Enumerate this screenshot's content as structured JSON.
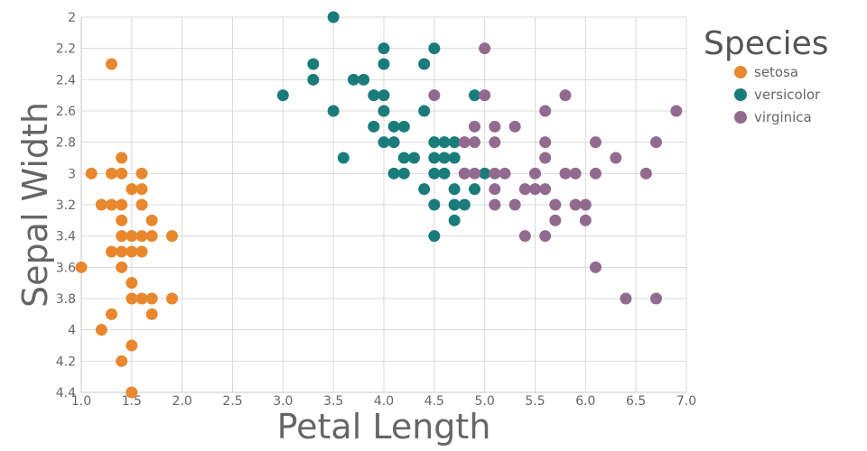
{
  "chart_data": {
    "type": "scatter",
    "xlabel": "Petal Length",
    "ylabel": "Sepal Width",
    "xlim": [
      1.0,
      7.0
    ],
    "ylim": [
      2.0,
      4.4
    ],
    "y_inverted": true,
    "x_ticks": [
      "1.0",
      "1.5",
      "2.0",
      "2.5",
      "3.0",
      "3.5",
      "4.0",
      "4.5",
      "5.0",
      "5.5",
      "6.0",
      "6.5",
      "7.0"
    ],
    "y_ticks": [
      "2",
      "2.2",
      "2.4",
      "2.6",
      "2.8",
      "3",
      "3.2",
      "3.4",
      "3.6",
      "3.8",
      "4",
      "4.2",
      "4.4"
    ],
    "grid": true,
    "legend": {
      "title": "Species",
      "position": "top-right"
    },
    "series": [
      {
        "name": "setosa",
        "color": "#e8872d",
        "points": [
          [
            1.3,
            2.3
          ],
          [
            1.1,
            3.0
          ],
          [
            1.3,
            3.0
          ],
          [
            1.4,
            3.0
          ],
          [
            1.6,
            3.0
          ],
          [
            1.4,
            2.9
          ],
          [
            1.5,
            3.1
          ],
          [
            1.6,
            3.1
          ],
          [
            1.2,
            3.2
          ],
          [
            1.3,
            3.2
          ],
          [
            1.4,
            3.2
          ],
          [
            1.6,
            3.2
          ],
          [
            1.4,
            3.3
          ],
          [
            1.7,
            3.3
          ],
          [
            1.4,
            3.4
          ],
          [
            1.5,
            3.4
          ],
          [
            1.6,
            3.4
          ],
          [
            1.7,
            3.4
          ],
          [
            1.9,
            3.4
          ],
          [
            1.3,
            3.5
          ],
          [
            1.4,
            3.5
          ],
          [
            1.5,
            3.5
          ],
          [
            1.6,
            3.5
          ],
          [
            1.0,
            3.6
          ],
          [
            1.4,
            3.6
          ],
          [
            1.5,
            3.7
          ],
          [
            1.5,
            3.8
          ],
          [
            1.6,
            3.8
          ],
          [
            1.7,
            3.8
          ],
          [
            1.9,
            3.8
          ],
          [
            1.3,
            3.9
          ],
          [
            1.7,
            3.9
          ],
          [
            1.2,
            4.0
          ],
          [
            1.5,
            4.1
          ],
          [
            1.4,
            4.2
          ],
          [
            1.5,
            4.4
          ]
        ]
      },
      {
        "name": "versicolor",
        "color": "#1a7b7b",
        "points": [
          [
            3.5,
            2.0
          ],
          [
            4.0,
            2.2
          ],
          [
            4.5,
            2.2
          ],
          [
            3.3,
            2.3
          ],
          [
            4.0,
            2.3
          ],
          [
            4.4,
            2.3
          ],
          [
            3.3,
            2.4
          ],
          [
            3.7,
            2.4
          ],
          [
            3.8,
            2.4
          ],
          [
            3.9,
            2.5
          ],
          [
            4.0,
            2.5
          ],
          [
            4.9,
            2.5
          ],
          [
            3.0,
            2.5
          ],
          [
            3.5,
            2.6
          ],
          [
            4.0,
            2.6
          ],
          [
            4.4,
            2.6
          ],
          [
            3.9,
            2.7
          ],
          [
            4.1,
            2.7
          ],
          [
            4.2,
            2.7
          ],
          [
            4.0,
            2.8
          ],
          [
            4.1,
            2.8
          ],
          [
            4.5,
            2.8
          ],
          [
            4.6,
            2.8
          ],
          [
            4.7,
            2.8
          ],
          [
            3.6,
            2.9
          ],
          [
            4.2,
            2.9
          ],
          [
            4.3,
            2.9
          ],
          [
            4.5,
            2.9
          ],
          [
            4.6,
            2.9
          ],
          [
            4.7,
            2.9
          ],
          [
            4.1,
            3.0
          ],
          [
            4.2,
            3.0
          ],
          [
            4.5,
            3.0
          ],
          [
            4.6,
            3.0
          ],
          [
            4.8,
            3.0
          ],
          [
            5.0,
            3.0
          ],
          [
            4.4,
            3.1
          ],
          [
            4.7,
            3.1
          ],
          [
            4.9,
            3.1
          ],
          [
            4.5,
            3.2
          ],
          [
            4.7,
            3.2
          ],
          [
            4.8,
            3.2
          ],
          [
            4.7,
            3.3
          ],
          [
            4.5,
            3.4
          ]
        ]
      },
      {
        "name": "virginica",
        "color": "#936a8f",
        "points": [
          [
            5.0,
            2.2
          ],
          [
            4.5,
            2.5
          ],
          [
            5.0,
            2.5
          ],
          [
            5.8,
            2.5
          ],
          [
            5.6,
            2.6
          ],
          [
            6.9,
            2.6
          ],
          [
            4.9,
            2.7
          ],
          [
            5.1,
            2.7
          ],
          [
            5.3,
            2.7
          ],
          [
            4.8,
            2.8
          ],
          [
            4.9,
            2.8
          ],
          [
            5.1,
            2.8
          ],
          [
            5.6,
            2.8
          ],
          [
            6.1,
            2.8
          ],
          [
            6.7,
            2.8
          ],
          [
            5.6,
            2.9
          ],
          [
            6.3,
            2.9
          ],
          [
            4.8,
            3.0
          ],
          [
            4.9,
            3.0
          ],
          [
            5.1,
            3.0
          ],
          [
            5.2,
            3.0
          ],
          [
            5.5,
            3.0
          ],
          [
            5.8,
            3.0
          ],
          [
            5.9,
            3.0
          ],
          [
            6.1,
            3.0
          ],
          [
            6.6,
            3.0
          ],
          [
            5.1,
            3.1
          ],
          [
            5.4,
            3.1
          ],
          [
            5.5,
            3.1
          ],
          [
            5.6,
            3.1
          ],
          [
            5.1,
            3.2
          ],
          [
            5.3,
            3.2
          ],
          [
            5.7,
            3.2
          ],
          [
            5.9,
            3.2
          ],
          [
            6.0,
            3.2
          ],
          [
            5.7,
            3.3
          ],
          [
            6.0,
            3.3
          ],
          [
            5.4,
            3.4
          ],
          [
            5.6,
            3.4
          ],
          [
            6.1,
            3.6
          ],
          [
            6.4,
            3.8
          ],
          [
            6.7,
            3.8
          ]
        ]
      }
    ]
  }
}
